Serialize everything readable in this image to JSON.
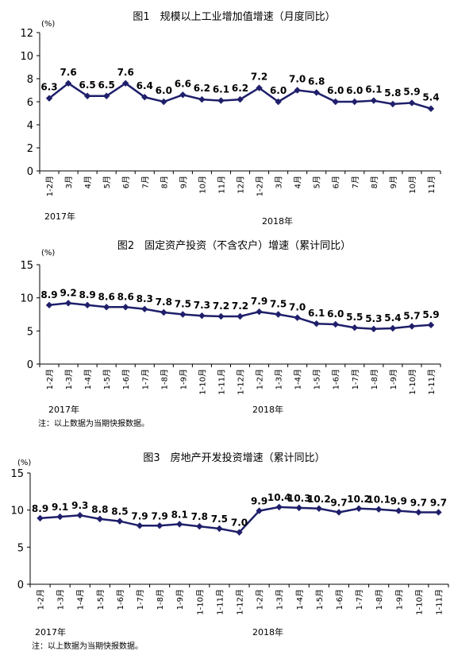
{
  "color": "#1f1f6b",
  "charts": [
    {
      "title": "图1　规模以上工业增加值增速（月度同比）",
      "unit": "(%)",
      "ylim": [
        0,
        12
      ],
      "yticks": [
        "0",
        "2",
        "4",
        "6",
        "8",
        "10",
        "12"
      ],
      "categories": [
        "1-2月",
        "3月",
        "4月",
        "5月",
        "6月",
        "7月",
        "8月",
        "9月",
        "10月",
        "11月",
        "12月",
        "1-2月",
        "3月",
        "4月",
        "5月",
        "6月",
        "7月",
        "8月",
        "9月",
        "10月",
        "11月"
      ],
      "values": [
        6.3,
        7.6,
        6.5,
        6.5,
        7.6,
        6.4,
        6.0,
        6.6,
        6.2,
        6.1,
        6.2,
        7.2,
        6.0,
        7.0,
        6.8,
        6.0,
        6.0,
        6.1,
        5.8,
        5.9,
        5.4
      ],
      "value_labels": [
        "6.3",
        "7.6",
        "6.5",
        "6.5",
        "7.6",
        "6.4",
        "6.0",
        "6.6",
        "6.2",
        "6.1",
        "6.2",
        "7.2",
        "6.0",
        "7.0",
        "6.8",
        "6.0",
        "6.0",
        "6.1",
        "5.8",
        "5.9",
        "5.4"
      ],
      "year1": "2017年",
      "year2": "2018年",
      "note": ""
    },
    {
      "title": "图2　固定资产投资（不含农户）增速（累计同比）",
      "unit": "(%)",
      "ylim": [
        0,
        15
      ],
      "yticks": [
        "0",
        "5",
        "10",
        "15"
      ],
      "categories": [
        "1-2月",
        "1-3月",
        "1-4月",
        "1-5月",
        "1-6月",
        "1-7月",
        "1-8月",
        "1-9月",
        "1-10月",
        "1-11月",
        "1-12月",
        "1-2月",
        "1-3月",
        "1-4月",
        "1-5月",
        "1-6月",
        "1-7月",
        "1-8月",
        "1-9月",
        "1-10月",
        "1-11月"
      ],
      "values": [
        8.9,
        9.2,
        8.9,
        8.6,
        8.6,
        8.3,
        7.8,
        7.5,
        7.3,
        7.2,
        7.2,
        7.9,
        7.5,
        7.0,
        6.1,
        6.0,
        5.5,
        5.3,
        5.4,
        5.7,
        5.9
      ],
      "value_labels": [
        "8.9",
        "9.2",
        "8.9",
        "8.6",
        "8.6",
        "8.3",
        "7.8",
        "7.5",
        "7.3",
        "7.2",
        "7.2",
        "7.9",
        "7.5",
        "7.0",
        "6.1",
        "6.0",
        "5.5",
        "5.3",
        "5.4",
        "5.7",
        "5.9"
      ],
      "year1": "2017年",
      "year2": "2018年",
      "note": "注：以上数据为当期快报数据。"
    },
    {
      "title": "图3　房地产开发投资增速（累计同比）",
      "unit": "(%)",
      "ylim": [
        0,
        15
      ],
      "yticks": [
        "0",
        "5",
        "10",
        "15"
      ],
      "categories": [
        "1-2月",
        "1-3月",
        "1-4月",
        "1-5月",
        "1-6月",
        "1-7月",
        "1-8月",
        "1-9月",
        "1-10月",
        "1-11月",
        "1-12月",
        "1-2月",
        "1-3月",
        "1-4月",
        "1-5月",
        "1-6月",
        "1-7月",
        "1-8月",
        "1-9月",
        "1-10月",
        "1-11月"
      ],
      "values": [
        8.9,
        9.1,
        9.3,
        8.8,
        8.5,
        7.9,
        7.9,
        8.1,
        7.8,
        7.5,
        7.0,
        9.9,
        10.4,
        10.3,
        10.2,
        9.7,
        10.2,
        10.1,
        9.9,
        9.7,
        9.7
      ],
      "value_labels": [
        "8.9",
        "9.1",
        "9.3",
        "8.8",
        "8.5",
        "7.9",
        "7.9",
        "8.1",
        "7.8",
        "7.5",
        "7.0",
        "9.9",
        "10.4",
        "10.3",
        "10.2",
        "9.7",
        "10.2",
        "10.1",
        "9.9",
        "9.7",
        "9.7"
      ],
      "year1": "2017年",
      "year2": "2018年",
      "note": "注：以上数据为当期快报数据。"
    }
  ],
  "chart_data": [
    {
      "type": "line",
      "title": "图1　规模以上工业增加值增速（月度同比）",
      "ylabel": "(%)",
      "ylim": [
        0,
        12
      ],
      "x": [
        "1-2月",
        "3月",
        "4月",
        "5月",
        "6月",
        "7月",
        "8月",
        "9月",
        "10月",
        "11月",
        "12月",
        "1-2月",
        "3月",
        "4月",
        "5月",
        "6月",
        "7月",
        "8月",
        "9月",
        "10月",
        "11月"
      ],
      "values": [
        6.3,
        7.6,
        6.5,
        6.5,
        7.6,
        6.4,
        6.0,
        6.6,
        6.2,
        6.1,
        6.2,
        7.2,
        6.0,
        7.0,
        6.8,
        6.0,
        6.0,
        6.1,
        5.8,
        5.9,
        5.4
      ]
    },
    {
      "type": "line",
      "title": "图2　固定资产投资（不含农户）增速（累计同比）",
      "ylabel": "(%)",
      "ylim": [
        0,
        15
      ],
      "x": [
        "1-2月",
        "1-3月",
        "1-4月",
        "1-5月",
        "1-6月",
        "1-7月",
        "1-8月",
        "1-9月",
        "1-10月",
        "1-11月",
        "1-12月",
        "1-2月",
        "1-3月",
        "1-4月",
        "1-5月",
        "1-6月",
        "1-7月",
        "1-8月",
        "1-9月",
        "1-10月",
        "1-11月"
      ],
      "values": [
        8.9,
        9.2,
        8.9,
        8.6,
        8.6,
        8.3,
        7.8,
        7.5,
        7.3,
        7.2,
        7.2,
        7.9,
        7.5,
        7.0,
        6.1,
        6.0,
        5.5,
        5.3,
        5.4,
        5.7,
        5.9
      ]
    },
    {
      "type": "line",
      "title": "图3　房地产开发投资增速（累计同比）",
      "ylabel": "(%)",
      "ylim": [
        0,
        15
      ],
      "x": [
        "1-2月",
        "1-3月",
        "1-4月",
        "1-5月",
        "1-6月",
        "1-7月",
        "1-8月",
        "1-9月",
        "1-10月",
        "1-11月",
        "1-12月",
        "1-2月",
        "1-3月",
        "1-4月",
        "1-5月",
        "1-6月",
        "1-7月",
        "1-8月",
        "1-9月",
        "1-10月",
        "1-11月"
      ],
      "values": [
        8.9,
        9.1,
        9.3,
        8.8,
        8.5,
        7.9,
        7.9,
        8.1,
        7.8,
        7.5,
        7.0,
        9.9,
        10.4,
        10.3,
        10.2,
        9.7,
        10.2,
        10.1,
        9.9,
        9.7,
        9.7
      ]
    }
  ]
}
